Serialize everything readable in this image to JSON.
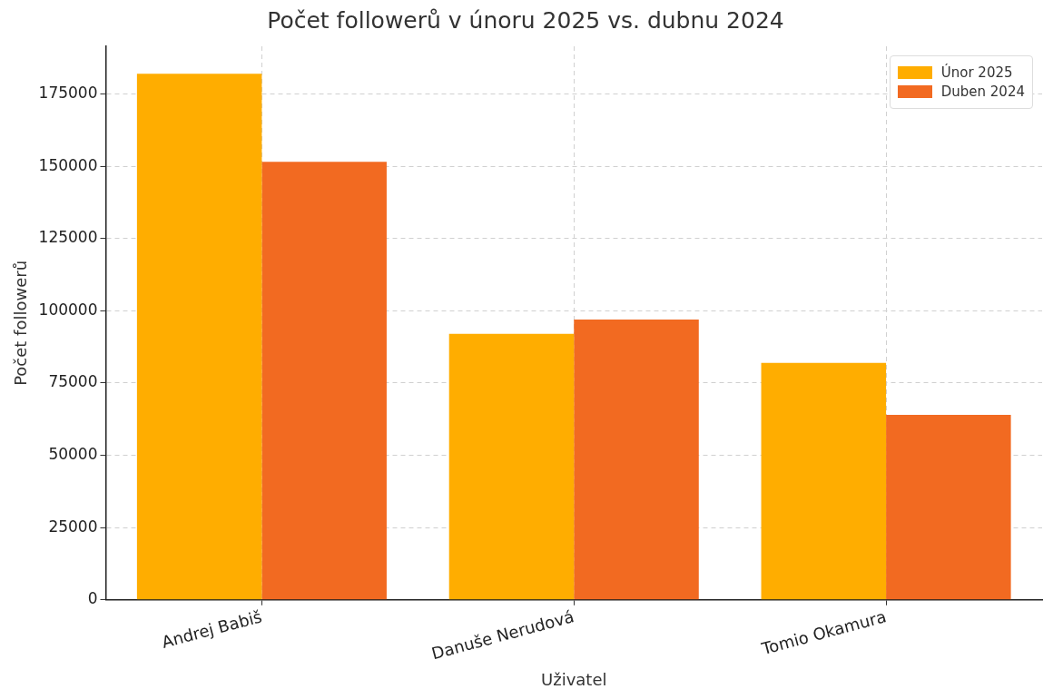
{
  "chart_data": {
    "type": "bar",
    "title": "Počet followerů v únoru 2025 vs. dubnu 2024",
    "xlabel": "Uživatel",
    "ylabel": "Počet followerů",
    "categories": [
      "Andrej Babiš",
      "Danuše Nerudová",
      "Tomio Okamura"
    ],
    "series": [
      {
        "name": "Únor 2025",
        "color": "#ffad00",
        "values": [
          182000,
          92000,
          82000
        ]
      },
      {
        "name": "Duben 2024",
        "color": "#f26a21",
        "values": [
          151500,
          97000,
          64000
        ]
      }
    ],
    "ylim": [
      0,
      191500
    ],
    "yticks": [
      0,
      25000,
      50000,
      75000,
      100000,
      125000,
      150000,
      175000
    ],
    "grid": true,
    "legend": "top right"
  }
}
